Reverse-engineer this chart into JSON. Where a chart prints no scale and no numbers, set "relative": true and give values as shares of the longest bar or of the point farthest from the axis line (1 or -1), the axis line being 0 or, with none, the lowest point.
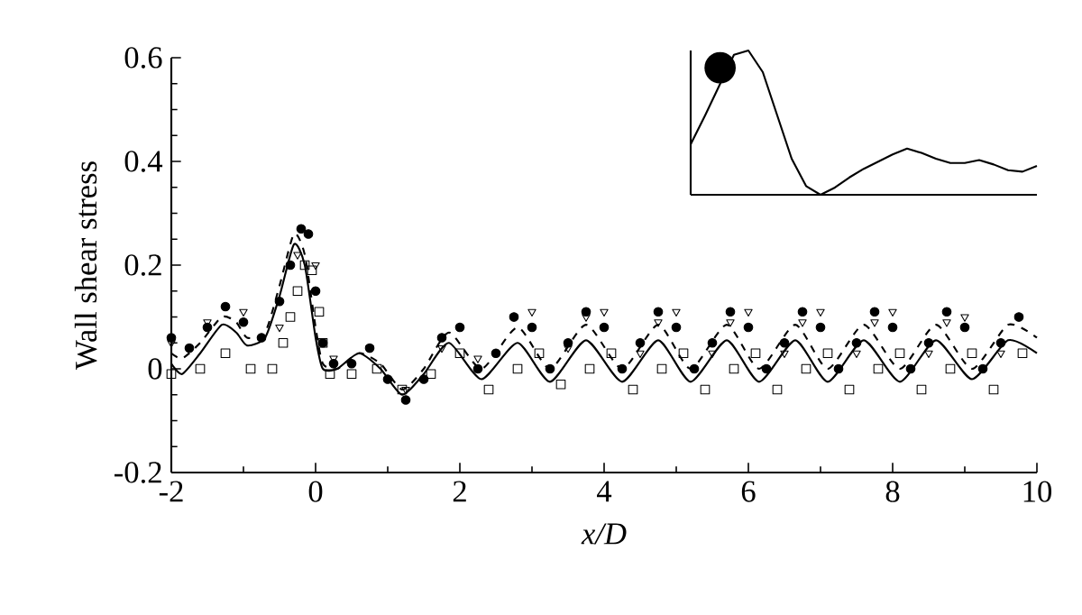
{
  "chart_data": [
    {
      "type": "line",
      "xlabel": "x/D",
      "ylabel": "Wall shear stress",
      "xlim": [
        -2,
        10
      ],
      "ylim": [
        -0.2,
        0.6
      ],
      "xticks": [
        -2,
        0,
        2,
        4,
        6,
        8,
        10
      ],
      "yticks": [
        -0.2,
        0,
        0.2,
        0.4,
        0.6
      ],
      "grid": false,
      "series": [
        {
          "color": "#000000",
          "marker": "none",
          "line_style": "solid",
          "x": [
            -2,
            -1.85,
            -1.6,
            -1.3,
            -1.1,
            -0.95,
            -0.7,
            -0.5,
            -0.3,
            -0.15,
            0,
            0.1,
            0.3,
            0.6,
            0.9,
            1.2,
            1.5,
            1.85,
            2.3,
            2.8,
            3.25,
            3.75,
            4.25,
            4.75,
            5.2,
            5.7,
            6.15,
            6.65,
            7.1,
            7.6,
            8.1,
            8.6,
            9.1,
            9.6,
            10
          ],
          "values": [
            0.01,
            -0.01,
            0.03,
            0.085,
            0.07,
            0.045,
            0.06,
            0.14,
            0.24,
            0.2,
            0.06,
            0.0,
            0.0,
            0.03,
            0.0,
            -0.05,
            -0.01,
            0.05,
            -0.02,
            0.05,
            -0.025,
            0.055,
            -0.025,
            0.055,
            -0.025,
            0.055,
            -0.025,
            0.055,
            -0.025,
            0.055,
            -0.025,
            0.055,
            -0.02,
            0.055,
            0.03
          ]
        },
        {
          "color": "#000000",
          "marker": "none",
          "line_style": "dashed",
          "x": [
            -2,
            -1.85,
            -1.6,
            -1.3,
            -1.1,
            -0.95,
            -0.7,
            -0.5,
            -0.3,
            -0.15,
            0,
            0.1,
            0.3,
            0.6,
            0.9,
            1.2,
            1.5,
            1.85,
            2.3,
            2.8,
            3.25,
            3.75,
            4.25,
            4.75,
            5.2,
            5.7,
            6.15,
            6.65,
            7.1,
            7.6,
            8.1,
            8.6,
            9.1,
            9.6,
            10
          ],
          "values": [
            0.03,
            0.02,
            0.05,
            0.1,
            0.09,
            0.06,
            0.07,
            0.16,
            0.26,
            0.22,
            0.08,
            0.01,
            0.0,
            0.03,
            0.01,
            -0.04,
            0.0,
            0.07,
            0.0,
            0.08,
            0.0,
            0.085,
            0.0,
            0.085,
            0.0,
            0.085,
            0.0,
            0.085,
            0.0,
            0.085,
            0.0,
            0.085,
            0.0,
            0.085,
            0.06
          ]
        },
        {
          "type": "scatter",
          "color": "#000000",
          "marker": "circle",
          "x": [
            -2,
            -1.75,
            -1.5,
            -1.25,
            -1,
            -0.75,
            -0.5,
            -0.35,
            -0.2,
            -0.1,
            0,
            0.1,
            0.25,
            0.5,
            0.75,
            1,
            1.25,
            1.5,
            1.75,
            2,
            2.25,
            2.5,
            2.75,
            3,
            3.25,
            3.5,
            3.75,
            4,
            4.25,
            4.5,
            4.75,
            5,
            5.25,
            5.5,
            5.75,
            6,
            6.25,
            6.5,
            6.75,
            7,
            7.25,
            7.5,
            7.75,
            8,
            8.25,
            8.5,
            8.75,
            9,
            9.25,
            9.5,
            9.75
          ],
          "values": [
            0.06,
            0.04,
            0.08,
            0.12,
            0.09,
            0.06,
            0.13,
            0.2,
            0.27,
            0.26,
            0.15,
            0.05,
            0.01,
            0.01,
            0.04,
            -0.02,
            -0.06,
            -0.02,
            0.06,
            0.08,
            0.0,
            0.03,
            0.1,
            0.08,
            0.0,
            0.05,
            0.11,
            0.08,
            0.0,
            0.05,
            0.11,
            0.08,
            0.0,
            0.05,
            0.11,
            0.08,
            0.0,
            0.05,
            0.11,
            0.08,
            0.0,
            0.05,
            0.11,
            0.08,
            0.0,
            0.05,
            0.11,
            0.08,
            0.0,
            0.05,
            0.1
          ]
        },
        {
          "type": "scatter",
          "color": "#000000",
          "marker": "triangle",
          "x": [
            -2,
            -1.5,
            -1,
            -0.5,
            -0.25,
            0,
            0.25,
            0.75,
            1.25,
            1.75,
            2.25,
            2.75,
            3,
            3.5,
            3.75,
            4,
            4.5,
            4.75,
            5,
            5.5,
            5.75,
            6,
            6.5,
            6.75,
            7,
            7.5,
            7.75,
            8,
            8.5,
            8.75,
            9,
            9.5,
            9.75
          ],
          "values": [
            0.05,
            0.09,
            0.11,
            0.08,
            0.22,
            0.2,
            0.02,
            0.04,
            -0.04,
            0.04,
            0.02,
            0.1,
            0.11,
            0.04,
            0.1,
            0.11,
            0.03,
            0.09,
            0.11,
            0.03,
            0.09,
            0.11,
            0.03,
            0.09,
            0.11,
            0.03,
            0.09,
            0.11,
            0.03,
            0.09,
            0.1,
            0.03,
            0.1
          ]
        },
        {
          "type": "scatter",
          "color": "#000000",
          "marker": "square",
          "x": [
            -2,
            -1.6,
            -1.25,
            -0.9,
            -0.6,
            -0.45,
            -0.35,
            -0.25,
            -0.15,
            -0.05,
            0.05,
            0.1,
            0.2,
            0.5,
            0.85,
            1.2,
            1.6,
            2,
            2.4,
            2.8,
            3.1,
            3.4,
            3.8,
            4.1,
            4.4,
            4.8,
            5.1,
            5.4,
            5.8,
            6.1,
            6.4,
            6.8,
            7.1,
            7.4,
            7.8,
            8.1,
            8.4,
            8.8,
            9.1,
            9.4,
            9.8
          ],
          "values": [
            -0.01,
            0.0,
            0.03,
            0.0,
            0.0,
            0.05,
            0.1,
            0.15,
            0.2,
            0.19,
            0.11,
            0.05,
            -0.01,
            -0.01,
            0.0,
            -0.04,
            -0.01,
            0.03,
            -0.04,
            0.0,
            0.03,
            -0.03,
            0.0,
            0.03,
            -0.04,
            0.0,
            0.03,
            -0.04,
            0.0,
            0.03,
            -0.04,
            0.0,
            0.03,
            -0.04,
            0.0,
            0.03,
            -0.04,
            0.0,
            0.03,
            -0.04,
            0.03
          ]
        }
      ]
    },
    {
      "type": "line",
      "relative": true,
      "categories": [
        null,
        null,
        null,
        null,
        null,
        null,
        null,
        null,
        null,
        null,
        null,
        null,
        null,
        null,
        null,
        null,
        null,
        null,
        null,
        null,
        null,
        null,
        null,
        null,
        null
      ],
      "series": [
        {
          "color": "#000000",
          "marker": "none",
          "line_style": "solid",
          "values": [
            0.35,
            0.55,
            null,
            0.97,
            1.0,
            0.85,
            0.55,
            0.25,
            0.06,
            0.0,
            0.05,
            0.12,
            0.18,
            0.23,
            0.28,
            0.32,
            0.29,
            0.25,
            0.22,
            0.22,
            0.24,
            0.21,
            0.17,
            0.16,
            0.2
          ]
        }
      ]
    }
  ]
}
